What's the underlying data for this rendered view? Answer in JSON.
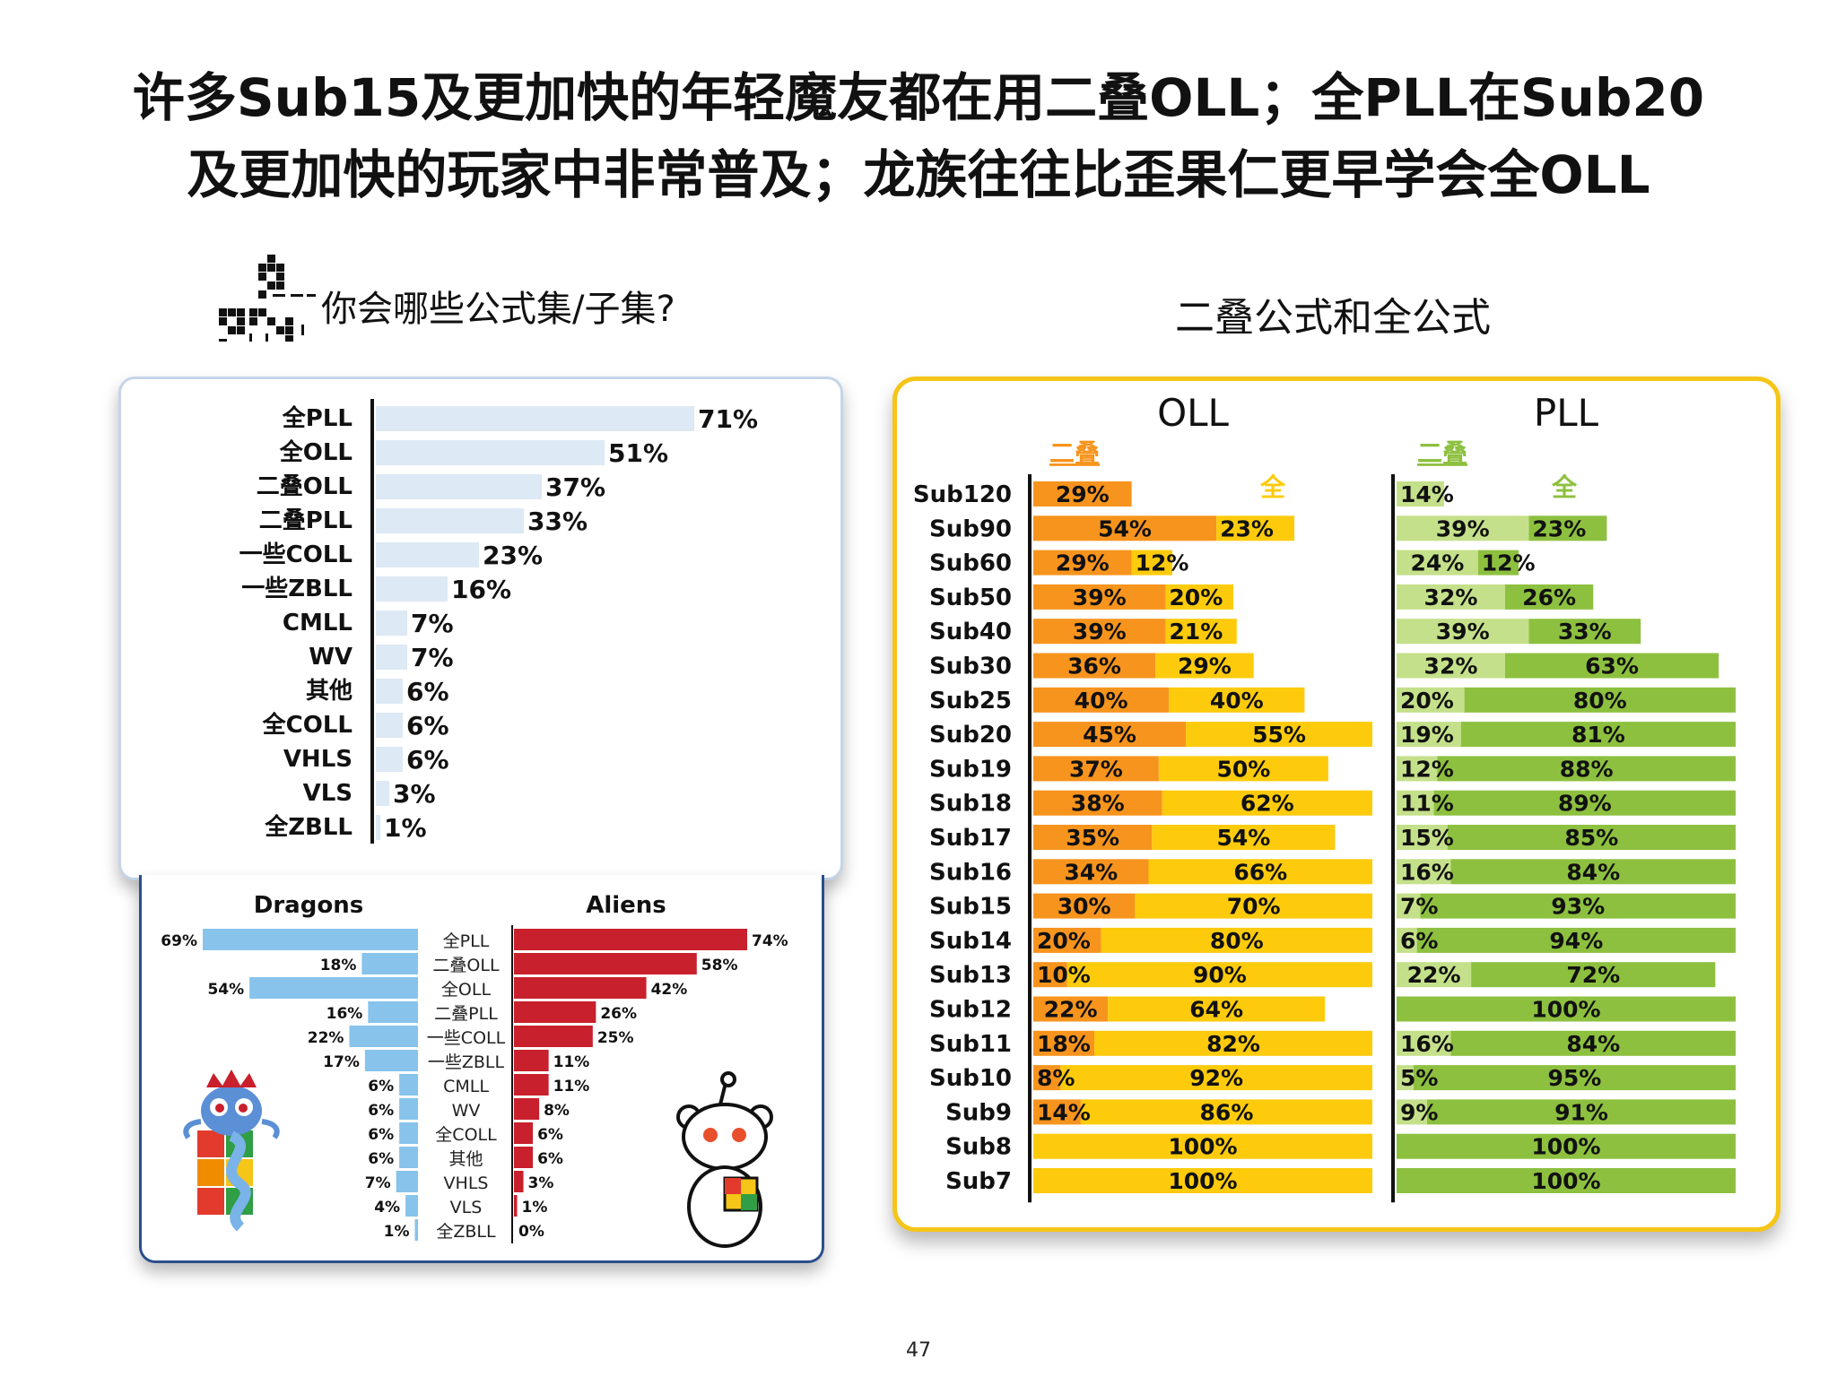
{
  "page": {
    "title_line1": "许多Sub15及更加快的年轻魔友都在用二叠OLL；全PLL在Sub20",
    "title_line2": "及更加快的玩家中非常普及；龙族往往比歪果仁更早学会全OLL",
    "page_number": "47"
  },
  "colors": {
    "light_blue_bar": "#dde9f4",
    "dragons_blue": "#87c3ea",
    "aliens_red": "#c8202c",
    "oll_partial": "#f7941d",
    "oll_full": "#fdcb0b",
    "pll_partial": "#c5e08a",
    "pll_full": "#8dc03f",
    "panel_yellow": "#f5c518",
    "panel_blue": "#2b4e8c"
  },
  "chart_data": [
    {
      "type": "bar",
      "orientation": "horizontal",
      "title": "你会哪些公式集/子集?",
      "categories": [
        "全PLL",
        "全OLL",
        "二叠OLL",
        "二叠PLL",
        "一些COLL",
        "一些ZBLL",
        "CMLL",
        "WV",
        "其他",
        "全COLL",
        "VHLS",
        "VLS",
        "全ZBLL"
      ],
      "values": [
        71,
        51,
        37,
        33,
        23,
        16,
        7,
        7,
        6,
        6,
        6,
        3,
        1
      ],
      "value_suffix": "%"
    },
    {
      "type": "bar",
      "orientation": "horizontal-diverging",
      "categories": [
        "全PLL",
        "二叠OLL",
        "全OLL",
        "二叠PLL",
        "一些COLL",
        "一些ZBLL",
        "CMLL",
        "WV",
        "全COLL",
        "其他",
        "VHLS",
        "VLS",
        "全ZBLL"
      ],
      "series": [
        {
          "name": "Dragons",
          "values": [
            69,
            18,
            54,
            16,
            22,
            17,
            6,
            6,
            6,
            6,
            7,
            4,
            1
          ]
        },
        {
          "name": "Aliens",
          "values": [
            74,
            58,
            42,
            26,
            25,
            11,
            11,
            8,
            6,
            6,
            3,
            1,
            0
          ]
        }
      ],
      "value_suffix": "%"
    },
    {
      "type": "bar",
      "orientation": "horizontal-stacked",
      "title": "二叠公式和全公式",
      "categories": [
        "Sub120",
        "Sub90",
        "Sub60",
        "Sub50",
        "Sub40",
        "Sub30",
        "Sub25",
        "Sub20",
        "Sub19",
        "Sub18",
        "Sub17",
        "Sub16",
        "Sub15",
        "Sub14",
        "Sub13",
        "Sub12",
        "Sub11",
        "Sub10",
        "Sub9",
        "Sub8",
        "Sub7"
      ],
      "panels": [
        {
          "name": "OLL",
          "series": [
            {
              "name": "二叠",
              "values": [
                29,
                54,
                29,
                39,
                39,
                36,
                40,
                45,
                37,
                38,
                35,
                34,
                30,
                20,
                10,
                22,
                18,
                8,
                14,
                0,
                0
              ]
            },
            {
              "name": "全",
              "values": [
                0,
                23,
                12,
                20,
                21,
                29,
                40,
                55,
                50,
                62,
                54,
                66,
                70,
                80,
                90,
                64,
                82,
                92,
                86,
                100,
                100
              ]
            }
          ]
        },
        {
          "name": "PLL",
          "series": [
            {
              "name": "二叠",
              "values": [
                14,
                39,
                24,
                32,
                39,
                32,
                20,
                19,
                12,
                11,
                15,
                16,
                7,
                6,
                22,
                0,
                16,
                5,
                9,
                0,
                0
              ]
            },
            {
              "name": "全",
              "values": [
                0,
                23,
                12,
                26,
                33,
                63,
                80,
                81,
                88,
                89,
                85,
                84,
                93,
                94,
                72,
                100,
                84,
                95,
                91,
                100,
                100
              ]
            }
          ]
        }
      ],
      "value_suffix": "%",
      "xlim": [
        0,
        100
      ]
    }
  ]
}
